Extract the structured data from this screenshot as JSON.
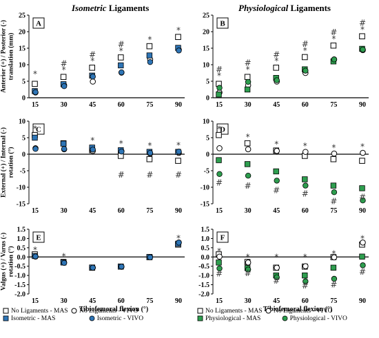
{
  "headers": [
    {
      "italic": "Isometric",
      "rest": " Ligaments"
    },
    {
      "italic": "Physiological",
      "rest": " Ligaments"
    }
  ],
  "colors": {
    "iso_fill": "#2e75b6",
    "phys_fill": "#2e9e4f",
    "stroke": "#000000"
  },
  "chart_data": [
    {
      "panel": "A",
      "type": "scatter",
      "ylabel": "Anterior (+) / Posterior (-) translation (mm)",
      "x": [
        15,
        30,
        45,
        60,
        75,
        90
      ],
      "yticks": [
        0,
        5,
        10,
        15,
        20,
        25
      ],
      "ylim": [
        0,
        25
      ],
      "series": [
        {
          "name": "No Ligaments - MAS",
          "marker": "square-open",
          "values": [
            4.2,
            6.3,
            9.1,
            12.2,
            15.6,
            18.4
          ]
        },
        {
          "name": "No Ligaments - VIVO",
          "marker": "circle-open",
          "values": [
            1.6,
            3.8,
            4.9,
            7.6,
            11.6,
            14.5
          ]
        },
        {
          "name": "Isometric - MAS",
          "marker": "square-filled",
          "values": [
            2.0,
            4.1,
            6.7,
            9.8,
            12.8,
            15.1
          ]
        },
        {
          "name": "Isometric - VIVO",
          "marker": "circle-filled",
          "values": [
            1.7,
            3.5,
            6.4,
            7.7,
            10.8,
            14.3
          ]
        }
      ],
      "annotations": [
        {
          "x": 15,
          "y": 7.2,
          "text": "*"
        },
        {
          "x": 30,
          "y": 10.3,
          "text": "#"
        },
        {
          "x": 30,
          "y": 8.4,
          "text": "*"
        },
        {
          "x": 45,
          "y": 13.0,
          "text": "#"
        },
        {
          "x": 45,
          "y": 11.1,
          "text": "*"
        },
        {
          "x": 60,
          "y": 16.1,
          "text": "#"
        },
        {
          "x": 60,
          "y": 14.2,
          "text": "*"
        },
        {
          "x": 75,
          "y": 17.6,
          "text": "*"
        },
        {
          "x": 90,
          "y": 20.4,
          "text": "*"
        }
      ]
    },
    {
      "panel": "B",
      "type": "scatter",
      "ylabel": "",
      "x": [
        15,
        30,
        45,
        60,
        75,
        90
      ],
      "yticks": [
        0,
        5,
        10,
        15,
        20,
        25
      ],
      "ylim": [
        0,
        25
      ],
      "series": [
        {
          "name": "No Ligaments - MAS",
          "marker": "square-open",
          "values": [
            4.2,
            6.3,
            9.1,
            12.3,
            15.8,
            18.6
          ]
        },
        {
          "name": "No Ligaments - VIVO",
          "marker": "circle-open",
          "values": [
            1.6,
            3.8,
            4.9,
            7.5,
            11.6,
            14.4
          ]
        },
        {
          "name": "Physiological - MAS",
          "marker": "square-filled",
          "values": [
            1.0,
            2.5,
            6.0,
            8.6,
            11.0,
            14.8
          ]
        },
        {
          "name": "Physiological - VIVO",
          "marker": "circle-filled",
          "values": [
            3.0,
            4.8,
            5.3,
            8.2,
            11.6,
            14.6
          ]
        }
      ],
      "annotations": [
        {
          "x": 15,
          "y": 8.5,
          "text": "#"
        },
        {
          "x": 15,
          "y": 6.7,
          "text": "*"
        },
        {
          "x": 30,
          "y": 10.5,
          "text": "#"
        },
        {
          "x": 30,
          "y": 8.5,
          "text": "*"
        },
        {
          "x": 45,
          "y": 13.0,
          "text": "#"
        },
        {
          "x": 45,
          "y": 11.1,
          "text": "*"
        },
        {
          "x": 60,
          "y": 16.3,
          "text": "#"
        },
        {
          "x": 60,
          "y": 14.3,
          "text": "*"
        },
        {
          "x": 75,
          "y": 19.8,
          "text": "#"
        },
        {
          "x": 75,
          "y": 17.8,
          "text": "*"
        },
        {
          "x": 90,
          "y": 22.6,
          "text": "#"
        },
        {
          "x": 90,
          "y": 20.6,
          "text": "*"
        }
      ]
    },
    {
      "panel": "C",
      "type": "scatter",
      "ylabel": "External (+) / Internal (-) rotation (°)",
      "x": [
        15,
        30,
        45,
        60,
        75,
        90
      ],
      "yticks": [
        10,
        5,
        0,
        -5,
        -10,
        -15
      ],
      "ylim": [
        -15,
        10
      ],
      "series": [
        {
          "name": "No Ligaments - MAS",
          "marker": "square-open",
          "values": [
            5.8,
            3.3,
            1.2,
            -0.5,
            -1.5,
            -2.0
          ]
        },
        {
          "name": "No Ligaments - VIVO",
          "marker": "circle-open",
          "values": [
            1.8,
            1.5,
            1.0,
            0.9,
            0.2,
            0.4
          ]
        },
        {
          "name": "Isometric - MAS",
          "marker": "square-filled",
          "values": [
            5.0,
            3.2,
            2.0,
            1.2,
            0.7,
            0.7
          ]
        },
        {
          "name": "Isometric - VIVO",
          "marker": "circle-filled",
          "values": [
            1.6,
            1.6,
            1.4,
            0.8,
            0.4,
            0.8
          ]
        }
      ],
      "annotations": [
        {
          "x": 15,
          "y": 7.7,
          "text": "*"
        },
        {
          "x": 45,
          "y": 4.2,
          "text": "*"
        },
        {
          "x": 60,
          "y": 3.2,
          "text": "*"
        },
        {
          "x": 60,
          "y": -6.3,
          "text": "#"
        },
        {
          "x": 75,
          "y": 2.6,
          "text": "*"
        },
        {
          "x": 75,
          "y": -6.3,
          "text": "#"
        },
        {
          "x": 90,
          "y": 2.7,
          "text": "*"
        },
        {
          "x": 90,
          "y": -6.3,
          "text": "#"
        }
      ]
    },
    {
      "panel": "D",
      "type": "scatter",
      "ylabel": "",
      "x": [
        15,
        30,
        45,
        60,
        75,
        90
      ],
      "yticks": [
        10,
        5,
        0,
        -5,
        -10,
        -15
      ],
      "ylim": [
        -15,
        10
      ],
      "series": [
        {
          "name": "No Ligaments - MAS",
          "marker": "square-open",
          "values": [
            5.8,
            3.3,
            1.1,
            -0.5,
            -1.5,
            -2.0
          ]
        },
        {
          "name": "No Ligaments - VIVO",
          "marker": "circle-open",
          "values": [
            1.8,
            1.5,
            1.0,
            0.7,
            0.2,
            0.4
          ]
        },
        {
          "name": "Physiological - MAS",
          "marker": "square-filled",
          "values": [
            -1.8,
            -3.0,
            -5.2,
            -7.6,
            -9.5,
            -10.3
          ]
        },
        {
          "name": "Physiological - VIVO",
          "marker": "circle-filled",
          "values": [
            -6.0,
            -6.5,
            -8.0,
            -9.5,
            -11.5,
            -14.0
          ]
        }
      ],
      "annotations": [
        {
          "x": 15,
          "y": 7.6,
          "text": "*"
        },
        {
          "x": 15,
          "y": -8.6,
          "text": "#"
        },
        {
          "x": 30,
          "y": 5.2,
          "text": "*"
        },
        {
          "x": 30,
          "y": -9.6,
          "text": "#"
        },
        {
          "x": 45,
          "y": 3.0,
          "text": "*"
        },
        {
          "x": 45,
          "y": -10.9,
          "text": "#"
        },
        {
          "x": 60,
          "y": 2.5,
          "text": "*"
        },
        {
          "x": 60,
          "y": -12.0,
          "text": "#"
        },
        {
          "x": 75,
          "y": 2.0,
          "text": "*"
        },
        {
          "x": 75,
          "y": -14.3,
          "text": "#"
        },
        {
          "x": 90,
          "y": 2.3,
          "text": "*"
        },
        {
          "x": 90,
          "y": -13.0,
          "text": "#"
        }
      ]
    },
    {
      "panel": "E",
      "type": "scatter",
      "ylabel": "Valgus (+) / Varus (-) rotation (°)",
      "x": [
        15,
        30,
        45,
        60,
        75,
        90
      ],
      "yticks": [
        1.5,
        1.0,
        0.5,
        0.0,
        -0.5,
        -1.0,
        -1.5,
        -2.0
      ],
      "ylim": [
        -2.0,
        1.5
      ],
      "series": [
        {
          "name": "No Ligaments - MAS",
          "marker": "square-open",
          "values": [
            0.14,
            -0.27,
            -0.58,
            -0.52,
            -0.01,
            0.67
          ]
        },
        {
          "name": "No Ligaments - VIVO",
          "marker": "circle-open",
          "values": [
            0.02,
            -0.3,
            -0.58,
            -0.53,
            0.0,
            0.78
          ]
        },
        {
          "name": "Isometric - MAS",
          "marker": "square-filled",
          "values": [
            0.05,
            -0.3,
            -0.57,
            -0.52,
            0.0,
            0.72
          ]
        },
        {
          "name": "Isometric - VIVO",
          "marker": "circle-filled",
          "values": [
            0.03,
            -0.32,
            -0.58,
            -0.52,
            -0.02,
            0.78
          ]
        }
      ],
      "annotations": [
        {
          "x": 15,
          "y": 0.38,
          "text": "*"
        },
        {
          "x": 30,
          "y": 0.02,
          "text": "*"
        },
        {
          "x": 90,
          "y": 1.02,
          "text": "*"
        }
      ]
    },
    {
      "panel": "F",
      "type": "scatter",
      "ylabel": "",
      "x": [
        15,
        30,
        45,
        60,
        75,
        90
      ],
      "yticks": [
        1.5,
        1.0,
        0.5,
        0.0,
        -0.5,
        -1.0,
        -1.5,
        -2.0
      ],
      "ylim": [
        -2.0,
        1.5
      ],
      "series": [
        {
          "name": "No Ligaments - MAS",
          "marker": "square-open",
          "values": [
            0.14,
            -0.27,
            -0.58,
            -0.52,
            -0.01,
            0.67
          ]
        },
        {
          "name": "No Ligaments - VIVO",
          "marker": "circle-open",
          "values": [
            0.02,
            -0.3,
            -0.58,
            -0.5,
            -0.02,
            0.78
          ]
        },
        {
          "name": "Physiological - MAS",
          "marker": "square-filled",
          "values": [
            -0.3,
            -0.6,
            -1.0,
            -1.0,
            -0.58,
            0.02
          ]
        },
        {
          "name": "Physiological - VIVO",
          "marker": "circle-filled",
          "values": [
            -0.62,
            -0.68,
            -1.1,
            -1.32,
            -1.18,
            -0.45
          ]
        }
      ],
      "annotations": [
        {
          "x": 15,
          "y": 0.3,
          "text": "*"
        },
        {
          "x": 15,
          "y": -0.9,
          "text": "#"
        },
        {
          "x": 30,
          "y": 0.0,
          "text": "*"
        },
        {
          "x": 30,
          "y": -0.88,
          "text": "#"
        },
        {
          "x": 45,
          "y": 0.0,
          "text": "*"
        },
        {
          "x": 45,
          "y": -1.3,
          "text": "#"
        },
        {
          "x": 60,
          "y": 0.0,
          "text": "*"
        },
        {
          "x": 60,
          "y": -1.55,
          "text": "#"
        },
        {
          "x": 75,
          "y": 0.18,
          "text": "*"
        },
        {
          "x": 75,
          "y": -1.5,
          "text": "#"
        },
        {
          "x": 90,
          "y": 1.0,
          "text": "*"
        },
        {
          "x": 90,
          "y": -0.8,
          "text": "#"
        }
      ]
    }
  ],
  "xlabel": "Tibiofemoral flexion (°)",
  "legends": [
    {
      "items": [
        {
          "label": "No Ligaments - MAS",
          "marker": "square-open"
        },
        {
          "label": "No Ligaments - VIVO",
          "marker": "circle-open"
        },
        {
          "label": "Isometric - MAS",
          "marker": "square-filled"
        },
        {
          "label": "Isometric - VIVO",
          "marker": "circle-filled"
        }
      ]
    },
    {
      "items": [
        {
          "label": "No Ligaments - MAS",
          "marker": "square-open"
        },
        {
          "label": "No Ligaments - VIVO",
          "marker": "circle-open"
        },
        {
          "label": "Physiological - MAS",
          "marker": "square-filled"
        },
        {
          "label": "Physiological - VIVO",
          "marker": "circle-filled"
        }
      ]
    }
  ]
}
